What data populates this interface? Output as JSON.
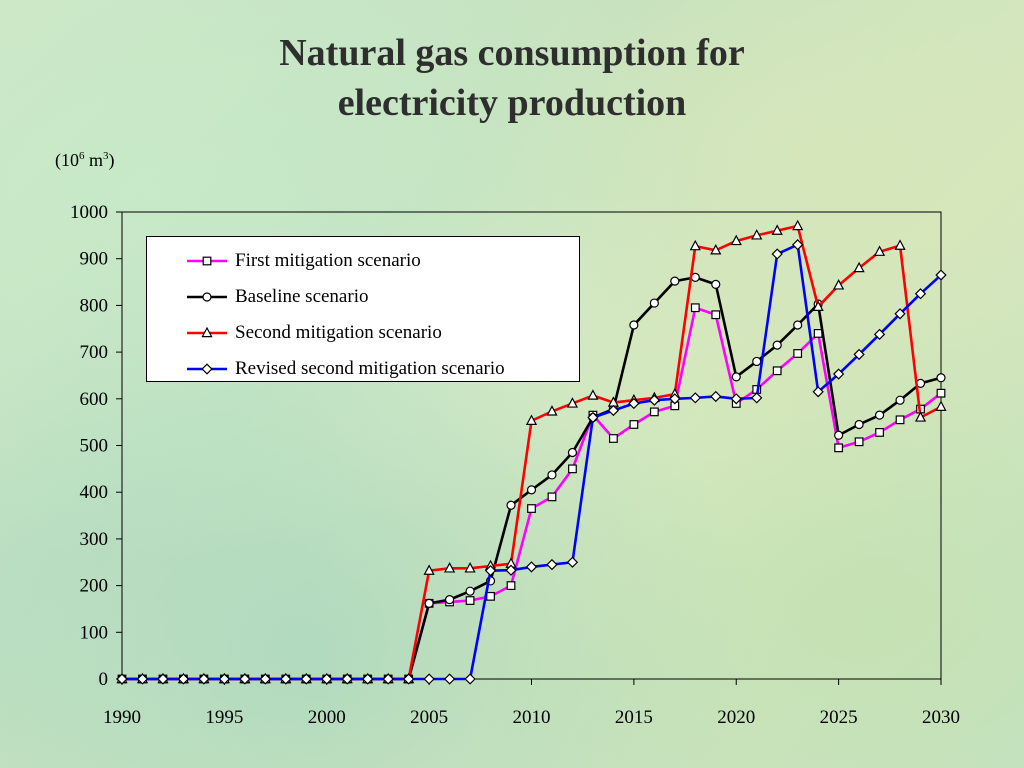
{
  "title_line1": "Natural gas consumption for",
  "title_line2": "electricity production",
  "unit": {
    "prefix": "(10",
    "exp1": "6",
    "mid": " m",
    "exp2": "3",
    "suffix": ")"
  },
  "chart_data": {
    "type": "line",
    "title": "Natural gas consumption for electricity production",
    "ylabel": "(10^6 m^3)",
    "xlabel": "",
    "xlim": [
      1990,
      2030
    ],
    "ylim": [
      0,
      1000
    ],
    "x_ticks": [
      1990,
      1995,
      2000,
      2005,
      2010,
      2015,
      2020,
      2025,
      2030
    ],
    "y_ticks": [
      0,
      100,
      200,
      300,
      400,
      500,
      600,
      700,
      800,
      900,
      1000
    ],
    "grid": true,
    "legend_position": "top-left",
    "x": [
      1990,
      1991,
      1992,
      1993,
      1994,
      1995,
      1996,
      1997,
      1998,
      1999,
      2000,
      2001,
      2002,
      2003,
      2004,
      2005,
      2006,
      2007,
      2008,
      2009,
      2010,
      2011,
      2012,
      2013,
      2014,
      2015,
      2016,
      2017,
      2018,
      2019,
      2020,
      2021,
      2022,
      2023,
      2024,
      2025,
      2026,
      2027,
      2028,
      2029,
      2030
    ],
    "series": [
      {
        "name": "First mitigation scenario",
        "color": "#ff00ff",
        "marker": "square",
        "values": [
          0,
          0,
          0,
          0,
          0,
          0,
          0,
          0,
          0,
          0,
          0,
          0,
          0,
          0,
          0,
          162,
          165,
          168,
          177,
          200,
          365,
          390,
          450,
          565,
          515,
          545,
          572,
          585,
          795,
          780,
          590,
          620,
          660,
          697,
          740,
          495,
          508,
          528,
          555,
          578,
          612
        ]
      },
      {
        "name": "Baseline scenario",
        "color": "#000000",
        "marker": "circle",
        "values": [
          0,
          0,
          0,
          0,
          0,
          0,
          0,
          0,
          0,
          0,
          0,
          0,
          0,
          0,
          0,
          162,
          170,
          188,
          210,
          372,
          405,
          437,
          485,
          560,
          578,
          758,
          805,
          852,
          860,
          845,
          647,
          680,
          715,
          758,
          803,
          522,
          545,
          565,
          597,
          633,
          645
        ]
      },
      {
        "name": "Second mitigation scenario",
        "color": "#ff0000",
        "marker": "triangle",
        "values": [
          0,
          0,
          0,
          0,
          0,
          0,
          0,
          0,
          0,
          0,
          0,
          0,
          0,
          0,
          0,
          232,
          237,
          237,
          242,
          247,
          553,
          573,
          590,
          607,
          592,
          597,
          602,
          610,
          927,
          918,
          938,
          950,
          960,
          970,
          797,
          843,
          880,
          915,
          928,
          560,
          583
        ]
      },
      {
        "name": "Revised second mitigation scenario",
        "color": "#0000ff",
        "marker": "diamond",
        "values": [
          0,
          0,
          0,
          0,
          0,
          0,
          0,
          0,
          0,
          0,
          0,
          0,
          0,
          0,
          0,
          0,
          0,
          0,
          232,
          233,
          240,
          245,
          250,
          560,
          575,
          590,
          597,
          600,
          602,
          605,
          600,
          602,
          910,
          930,
          615,
          653,
          695,
          738,
          782,
          825,
          865
        ]
      }
    ]
  }
}
